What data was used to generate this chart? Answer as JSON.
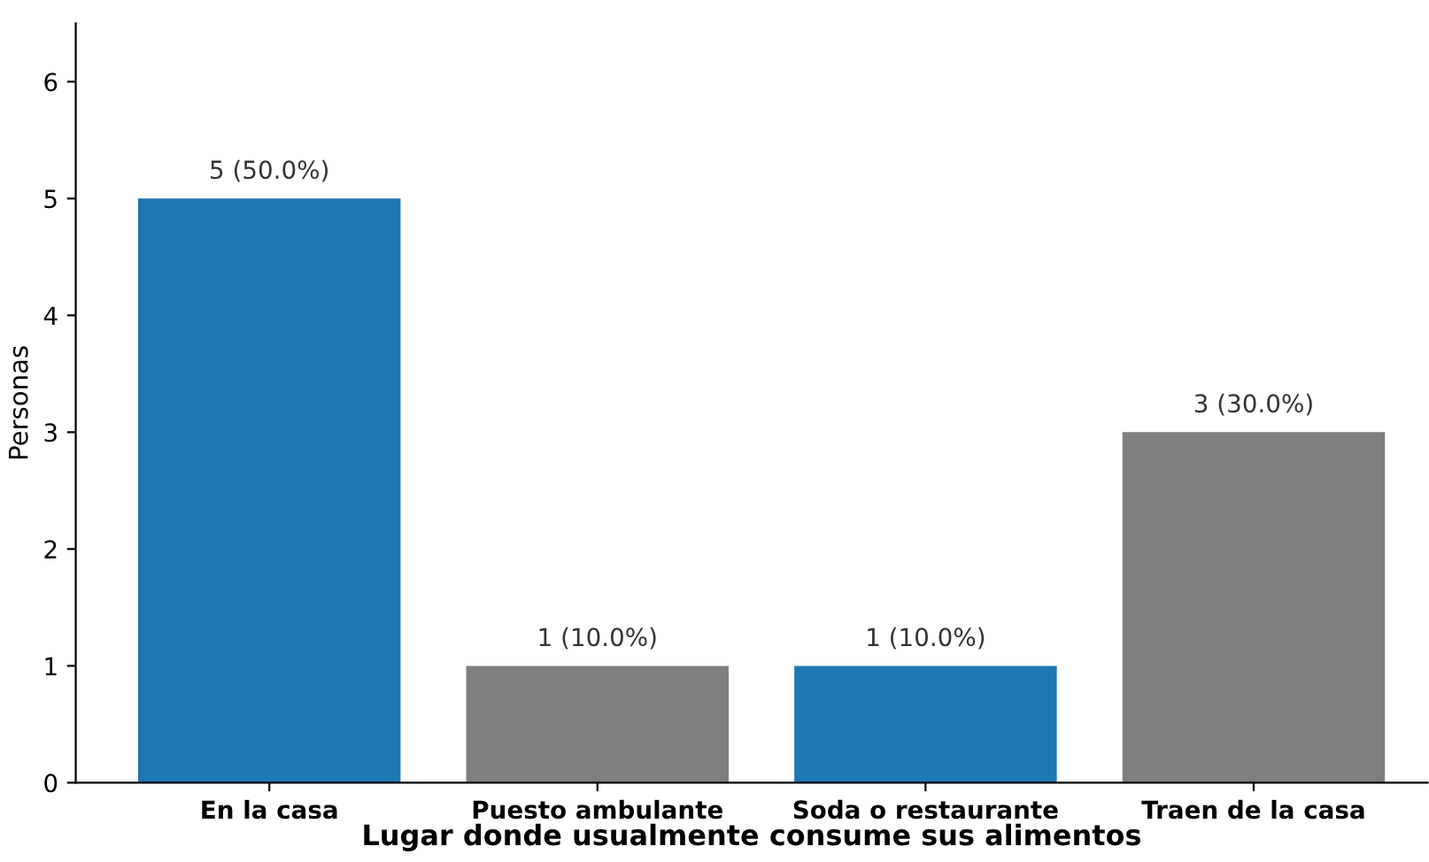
{
  "chart_data": {
    "type": "bar",
    "xlabel": "Lugar donde usualmente consume sus alimentos",
    "ylabel": "Personas",
    "categories": [
      "En la casa",
      "Puesto ambulante",
      "Soda o restaurante",
      "Traen de la casa"
    ],
    "values": [
      5,
      1,
      1,
      3
    ],
    "colors": [
      "#1f77b4",
      "#7f7f7f",
      "#1f77b4",
      "#7f7f7f"
    ],
    "value_labels": [
      "5 (50.0%)",
      "1 (10.0%)",
      "1 (10.0%)",
      "3 (30.0%)"
    ],
    "ylim": [
      0,
      6.5
    ],
    "yticks": [
      0,
      1,
      2,
      3,
      4,
      5,
      6
    ],
    "grid": false,
    "legend": false
  }
}
